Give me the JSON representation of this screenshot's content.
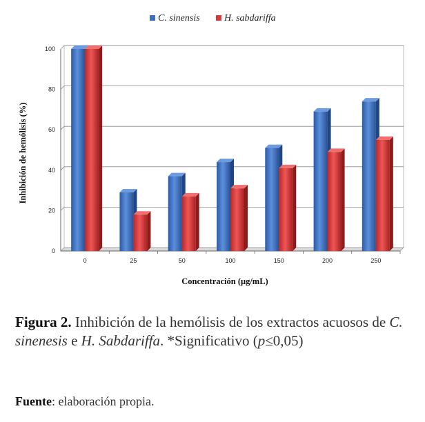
{
  "chart_data": {
    "type": "bar",
    "categories": [
      "0",
      "25",
      "50",
      "100",
      "150",
      "200",
      "250"
    ],
    "series": [
      {
        "name": "C. sinensis",
        "values": [
          100,
          29,
          37,
          44,
          51,
          69,
          74
        ],
        "color": "#3a6fc2"
      },
      {
        "name": "H. sabdariffa",
        "values": [
          100,
          18,
          27,
          31,
          41,
          49,
          55
        ],
        "color": "#d83a3a"
      }
    ],
    "xlabel": "Concentración (μg/mL)",
    "ylabel": "Inhibición de hemólisis (%)",
    "ylim": [
      0,
      100
    ],
    "yticks": [
      "0",
      "20",
      "40",
      "60",
      "80",
      "100"
    ],
    "grid": true,
    "legend_position": "top-center"
  },
  "caption": {
    "label": "Figura 2.",
    "text_1": " Inhibición de la hemólisis de los extractos acuosos de ",
    "species_1": "C. sinenesis",
    "text_2": " e ",
    "species_2": "H. Sabdariffa",
    "text_3": ". *Significativo (",
    "p_symbol": "p",
    "text_4": "≤0,05)"
  },
  "source": {
    "label": "Fuente",
    "text": ": elaboración propia."
  }
}
